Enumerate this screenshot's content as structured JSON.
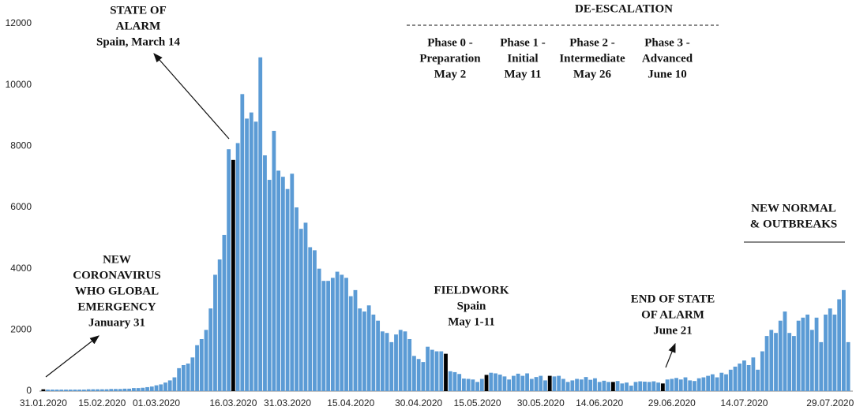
{
  "chart_data": {
    "type": "bar",
    "color": "#5b9bd5",
    "highlight_color": "#000000",
    "highlight_indices": [
      0,
      42,
      89,
      98,
      112,
      126,
      137
    ],
    "ylim": [
      0,
      12000
    ],
    "yticks": [
      0,
      2000,
      4000,
      6000,
      8000,
      10000,
      12000
    ],
    "grid": false,
    "categories": [
      "31.01.2020",
      null,
      null,
      null,
      null,
      null,
      null,
      null,
      null,
      null,
      null,
      null,
      null,
      "15.02.2020",
      null,
      null,
      null,
      null,
      null,
      null,
      null,
      null,
      null,
      null,
      null,
      "01.03.2020",
      null,
      null,
      null,
      null,
      null,
      null,
      null,
      null,
      null,
      null,
      null,
      null,
      null,
      null,
      null,
      null,
      "16.03.2020",
      null,
      null,
      null,
      null,
      null,
      null,
      null,
      null,
      null,
      null,
      null,
      "31.03.2020",
      null,
      null,
      null,
      null,
      null,
      null,
      null,
      null,
      null,
      null,
      null,
      null,
      null,
      "15.04.2020",
      null,
      null,
      null,
      null,
      null,
      null,
      null,
      null,
      null,
      null,
      null,
      null,
      null,
      null,
      "30.04.2020",
      null,
      null,
      null,
      null,
      null,
      null,
      null,
      null,
      null,
      null,
      null,
      null,
      "15.05.2020",
      null,
      null,
      null,
      null,
      null,
      null,
      null,
      null,
      null,
      null,
      null,
      null,
      null,
      "30.05.2020",
      null,
      null,
      null,
      null,
      null,
      null,
      null,
      null,
      null,
      null,
      null,
      null,
      "14.06.2020",
      null,
      null,
      null,
      null,
      null,
      null,
      null,
      null,
      null,
      null,
      null,
      null,
      null,
      null,
      null,
      "29.06.2020",
      null,
      null,
      null,
      null,
      null,
      null,
      null,
      null,
      null,
      null,
      null,
      null,
      null,
      null,
      null,
      "14.07.2020",
      null,
      null,
      null,
      null,
      null,
      null,
      null,
      null,
      null,
      null,
      null,
      null,
      null,
      null,
      null,
      null,
      null,
      null,
      "29.07.2020",
      null,
      null,
      null,
      null
    ],
    "values": [
      60,
      50,
      50,
      50,
      50,
      50,
      50,
      50,
      50,
      50,
      60,
      60,
      60,
      60,
      60,
      70,
      70,
      70,
      80,
      80,
      100,
      100,
      110,
      130,
      150,
      190,
      220,
      280,
      350,
      450,
      750,
      850,
      900,
      1100,
      1500,
      1700,
      2000,
      2700,
      3800,
      4300,
      5100,
      7900,
      7550,
      8100,
      9700,
      8900,
      9100,
      8800,
      10900,
      7700,
      6900,
      8500,
      7200,
      7000,
      6600,
      7100,
      6000,
      5300,
      5500,
      4700,
      4600,
      4000,
      3600,
      3600,
      3700,
      3900,
      3800,
      3700,
      3100,
      3300,
      2700,
      2600,
      2800,
      2500,
      2300,
      1950,
      1900,
      1600,
      1850,
      2000,
      1950,
      1700,
      1150,
      1050,
      950,
      1450,
      1350,
      1300,
      1300,
      1220,
      650,
      620,
      560,
      410,
      400,
      380,
      300,
      400,
      530,
      600,
      580,
      540,
      480,
      380,
      500,
      570,
      500,
      580,
      400,
      460,
      500,
      350,
      500,
      480,
      500,
      400,
      300,
      350,
      400,
      380,
      460,
      370,
      420,
      300,
      340,
      300,
      300,
      330,
      250,
      280,
      180,
      300,
      320,
      310,
      300,
      320,
      280,
      250,
      380,
      400,
      430,
      380,
      450,
      350,
      330,
      420,
      450,
      500,
      550,
      450,
      600,
      550,
      700,
      800,
      900,
      1000,
      850,
      1100,
      700,
      1300,
      1800,
      2000,
      1900,
      2300,
      2600,
      1900,
      1800,
      2300,
      2400,
      2500,
      2000,
      2400,
      1600,
      2500,
      2700,
      2500,
      3000,
      3300,
      1600
    ],
    "annotations": [
      {
        "lines": [
          "STATE OF",
          "ALARM",
          "Spain, March 14"
        ]
      },
      {
        "lines": [
          "DE-ESCALATION"
        ]
      },
      {
        "lines": [
          "Phase 0 -",
          "Preparation",
          "May 2"
        ]
      },
      {
        "lines": [
          "Phase 1 -",
          "Initial",
          "May 11"
        ]
      },
      {
        "lines": [
          "Phase 2 -",
          "Intermediate",
          "May 26"
        ]
      },
      {
        "lines": [
          "Phase 3 -",
          "Advanced",
          "June 10"
        ]
      },
      {
        "lines": [
          "NEW",
          "CORONAVIRUS",
          "WHO GLOBAL",
          "EMERGENCY",
          "January 31"
        ]
      },
      {
        "lines": [
          "FIELDWORK",
          "Spain",
          "May 1-11"
        ]
      },
      {
        "lines": [
          "END OF STATE",
          "OF ALARM",
          "June 21"
        ]
      },
      {
        "lines": [
          "NEW NORMAL",
          "& OUTBREAKS"
        ]
      }
    ]
  }
}
